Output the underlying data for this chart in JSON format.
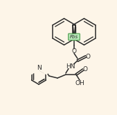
{
  "bg_color": "#fdf5e8",
  "line_color": "#2a2a2a",
  "figsize": [
    1.69,
    1.65
  ],
  "dpi": 100,
  "fmoc_label": "Fbs",
  "hn_label": "HN",
  "oh_label": "OH",
  "n_label": "N",
  "font_size": 6.5,
  "box_edge_color": "#4a9a4a",
  "box_face_color": "#b8e8b8"
}
